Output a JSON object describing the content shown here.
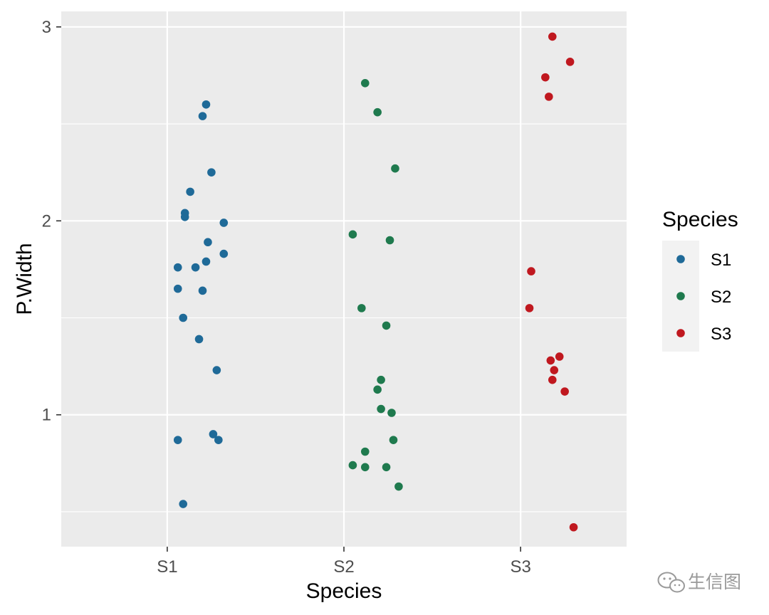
{
  "chart_data": {
    "type": "scatter",
    "title": "",
    "xlabel": "Species",
    "ylabel": "P.Width",
    "categories": [
      "S1",
      "S2",
      "S3"
    ],
    "ylim": [
      0.32,
      3.08
    ],
    "yticks": [
      1,
      2,
      3
    ],
    "grid": true,
    "legend": {
      "title": "Species",
      "position": "right",
      "entries": [
        "S1",
        "S2",
        "S3"
      ]
    },
    "colors": {
      "S1": "#1f6a98",
      "S2": "#1f7a4e",
      "S3": "#c0181f",
      "panel": "#ebebeb",
      "grid": "#ffffff",
      "legend_key_bg": "#f2f2f2"
    },
    "series": [
      {
        "name": "S1",
        "points": [
          {
            "x": 1.22,
            "y": 2.6
          },
          {
            "x": 1.2,
            "y": 2.54
          },
          {
            "x": 1.25,
            "y": 2.25
          },
          {
            "x": 1.13,
            "y": 2.15
          },
          {
            "x": 1.1,
            "y": 2.04
          },
          {
            "x": 1.1,
            "y": 2.02
          },
          {
            "x": 1.32,
            "y": 1.99
          },
          {
            "x": 1.23,
            "y": 1.89
          },
          {
            "x": 1.32,
            "y": 1.83
          },
          {
            "x": 1.22,
            "y": 1.79
          },
          {
            "x": 1.06,
            "y": 1.76
          },
          {
            "x": 1.16,
            "y": 1.76
          },
          {
            "x": 1.06,
            "y": 1.65
          },
          {
            "x": 1.2,
            "y": 1.64
          },
          {
            "x": 1.09,
            "y": 1.5
          },
          {
            "x": 1.18,
            "y": 1.39
          },
          {
            "x": 1.28,
            "y": 1.23
          },
          {
            "x": 1.06,
            "y": 0.87
          },
          {
            "x": 1.26,
            "y": 0.9
          },
          {
            "x": 1.29,
            "y": 0.87
          },
          {
            "x": 1.09,
            "y": 0.54
          }
        ]
      },
      {
        "name": "S2",
        "points": [
          {
            "x": 2.12,
            "y": 2.71
          },
          {
            "x": 2.19,
            "y": 2.56
          },
          {
            "x": 2.29,
            "y": 2.27
          },
          {
            "x": 2.05,
            "y": 1.93
          },
          {
            "x": 2.26,
            "y": 1.9
          },
          {
            "x": 2.1,
            "y": 1.55
          },
          {
            "x": 2.24,
            "y": 1.46
          },
          {
            "x": 2.21,
            "y": 1.18
          },
          {
            "x": 2.19,
            "y": 1.13
          },
          {
            "x": 2.21,
            "y": 1.03
          },
          {
            "x": 2.27,
            "y": 1.01
          },
          {
            "x": 2.28,
            "y": 0.87
          },
          {
            "x": 2.12,
            "y": 0.81
          },
          {
            "x": 2.05,
            "y": 0.74
          },
          {
            "x": 2.12,
            "y": 0.73
          },
          {
            "x": 2.24,
            "y": 0.73
          },
          {
            "x": 2.31,
            "y": 0.63
          }
        ]
      },
      {
        "name": "S3",
        "points": [
          {
            "x": 3.18,
            "y": 2.95
          },
          {
            "x": 3.28,
            "y": 2.82
          },
          {
            "x": 3.14,
            "y": 2.74
          },
          {
            "x": 3.16,
            "y": 2.64
          },
          {
            "x": 3.06,
            "y": 1.74
          },
          {
            "x": 3.05,
            "y": 1.55
          },
          {
            "x": 3.22,
            "y": 1.3
          },
          {
            "x": 3.17,
            "y": 1.28
          },
          {
            "x": 3.19,
            "y": 1.23
          },
          {
            "x": 3.18,
            "y": 1.18
          },
          {
            "x": 3.25,
            "y": 1.12
          },
          {
            "x": 3.3,
            "y": 0.42
          }
        ]
      }
    ]
  },
  "watermark": {
    "text": "生信图",
    "icon": "wechat-icon"
  }
}
